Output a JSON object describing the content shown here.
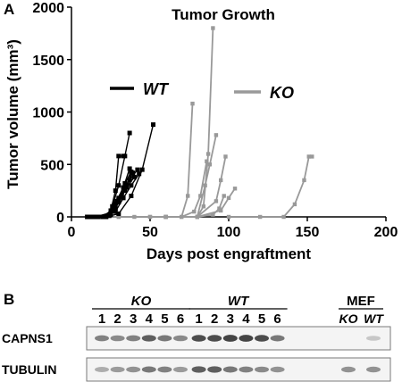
{
  "panel_a": {
    "letter": "A"
  },
  "panel_b": {
    "letter": "B"
  },
  "chart_data": {
    "type": "line",
    "title": "Tumor Growth",
    "xlabel": "Days post engraftment",
    "ylabel": "Tumor volume (mm³)",
    "xlim": [
      0,
      200
    ],
    "ylim": [
      0,
      2000
    ],
    "xticks": [
      "0",
      "50",
      "100",
      "150",
      "200"
    ],
    "yticks": [
      "0",
      "500",
      "1000",
      "1500",
      "2000"
    ],
    "grid": false,
    "legend": [
      {
        "name": "WT",
        "color": "#000000"
      },
      {
        "name": "KO",
        "color": "#999999"
      }
    ],
    "groups": [
      {
        "group": "WT",
        "color": "#000000",
        "series": [
          {
            "x": [
              10,
              20,
              25,
              28,
              30,
              33
            ],
            "y": [
              0,
              0,
              60,
              250,
              580,
              580
            ]
          },
          {
            "x": [
              12,
              22,
              26,
              30,
              34,
              37
            ],
            "y": [
              0,
              0,
              100,
              300,
              580,
              800
            ]
          },
          {
            "x": [
              14,
              24,
              28,
              33,
              37
            ],
            "y": [
              0,
              10,
              130,
              280,
              460
            ]
          },
          {
            "x": [
              15,
              24,
              29,
              34,
              38
            ],
            "y": [
              0,
              20,
              150,
              320,
              430
            ]
          },
          {
            "x": [
              16,
              25,
              30,
              35,
              39
            ],
            "y": [
              0,
              30,
              180,
              300,
              420
            ]
          },
          {
            "x": [
              17,
              25,
              30,
              35,
              40
            ],
            "y": [
              0,
              20,
              140,
              280,
              380
            ]
          },
          {
            "x": [
              15,
              25,
              30,
              35
            ],
            "y": [
              0,
              40,
              160,
              300
            ]
          },
          {
            "x": [
              20,
              27,
              32,
              37,
              42
            ],
            "y": [
              0,
              60,
              200,
              350,
              450
            ]
          },
          {
            "x": [
              20,
              28,
              33,
              38,
              43
            ],
            "y": [
              0,
              50,
              180,
              300,
              410
            ]
          },
          {
            "x": [
              22,
              30,
              38,
              45,
              52
            ],
            "y": [
              0,
              30,
              200,
              450,
              880
            ]
          },
          {
            "x": [
              20,
              28,
              34,
              38
            ],
            "y": [
              0,
              80,
              250,
              420
            ]
          }
        ]
      },
      {
        "group": "KO",
        "color": "#999999",
        "series": [
          {
            "x": [
              10,
              30,
              50,
              70,
              74,
              77
            ],
            "y": [
              0,
              0,
              0,
              0,
              200,
              1080
            ]
          },
          {
            "x": [
              40,
              60,
              80,
              84,
              87,
              90
            ],
            "y": [
              0,
              0,
              0,
              100,
              600,
              1800
            ]
          },
          {
            "x": [
              30,
              60,
              80,
              85,
              88,
              92
            ],
            "y": [
              0,
              0,
              0,
              300,
              500,
              780
            ]
          },
          {
            "x": [
              50,
              70,
              78,
              82,
              86
            ],
            "y": [
              0,
              0,
              50,
              200,
              530
            ]
          },
          {
            "x": [
              60,
              80,
              92,
              95,
              98
            ],
            "y": [
              0,
              0,
              150,
              350,
              575
            ]
          },
          {
            "x": [
              60,
              80,
              95,
              100,
              104
            ],
            "y": [
              0,
              0,
              60,
              180,
              270
            ]
          },
          {
            "x": [
              60,
              80,
              90,
              94,
              97
            ],
            "y": [
              0,
              0,
              20,
              80,
              200
            ]
          },
          {
            "x": [
              100,
              120,
              135,
              142,
              148,
              151,
              153
            ],
            "y": [
              0,
              0,
              0,
              120,
              350,
              575,
              575
            ]
          }
        ]
      }
    ]
  },
  "blot": {
    "groups": [
      {
        "name": "KO",
        "lanes": [
          "1",
          "2",
          "3",
          "4",
          "5",
          "6"
        ]
      },
      {
        "name": "WT",
        "lanes": [
          "1",
          "2",
          "3",
          "4",
          "5",
          "6"
        ]
      },
      {
        "name": "MEF",
        "lanes": [
          "KO",
          "WT"
        ]
      }
    ],
    "rows": [
      {
        "label": "CAPNS1",
        "intensities": [
          0.55,
          0.5,
          0.55,
          0.75,
          0.6,
          0.5,
          0.85,
          0.85,
          0.9,
          0.9,
          0.85,
          0.6,
          0.0,
          0.15
        ]
      },
      {
        "label": "TUBULIN",
        "intensities": [
          0.3,
          0.4,
          0.45,
          0.6,
          0.55,
          0.4,
          0.75,
          0.75,
          0.6,
          0.55,
          0.5,
          0.45,
          0.45,
          0.45
        ]
      }
    ]
  }
}
